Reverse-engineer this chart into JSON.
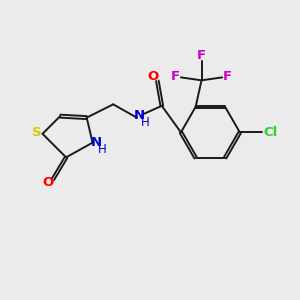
{
  "background_color": "#ebebeb",
  "bond_color": "#1a1a1a",
  "S_color": "#cccc00",
  "N_color": "#0000cc",
  "O_color": "#ff0000",
  "Cl_color": "#33cc33",
  "F_color": "#cc00cc",
  "figsize": [
    3.0,
    3.0
  ],
  "dpi": 100,
  "xlim": [
    0,
    10
  ],
  "ylim": [
    0,
    10
  ]
}
